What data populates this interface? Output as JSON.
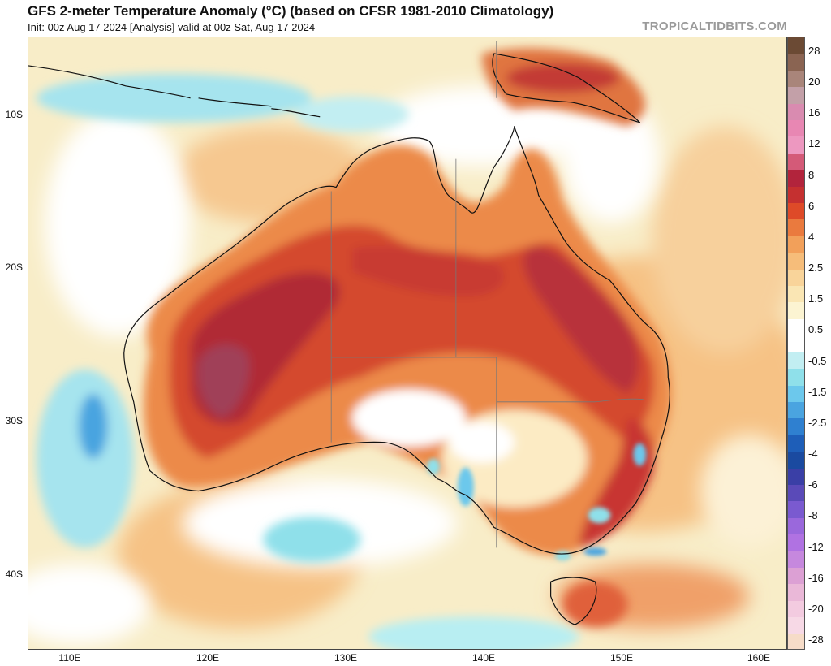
{
  "header": {
    "title": "GFS 2-meter Temperature Anomaly (°C) (based on CFSR 1981-2010 Climatology)",
    "subtitle": "Init: 00z Aug 17 2024   [Analysis]   valid at 00z Sat, Aug 17 2024",
    "credit": "TROPICALTIDBITS.COM"
  },
  "map": {
    "region": "Australia",
    "lat_labels": [
      "10S",
      "20S",
      "30S",
      "40S"
    ],
    "lon_labels": [
      "110E",
      "120E",
      "130E",
      "140E",
      "150E",
      "160E"
    ]
  },
  "colorbar": {
    "labels": [
      "28",
      "20",
      "16",
      "12",
      "8",
      "6",
      "4",
      "2.5",
      "1.5",
      "0.5",
      "-0.5",
      "-1.5",
      "-2.5",
      "-4",
      "-6",
      "-8",
      "-12",
      "-16",
      "-20",
      "-28"
    ],
    "colors": [
      "#6b4a34",
      "#8a6452",
      "#a9857a",
      "#c3a0a8",
      "#d98bb0",
      "#e887b3",
      "#ed98c0",
      "#d45a78",
      "#b2243c",
      "#c53030",
      "#de4a28",
      "#ea7a3e",
      "#f2a05a",
      "#f6bd7a",
      "#f9d49a",
      "#fae6b4",
      "#fcf4d2",
      "#ffffff",
      "#ffffff",
      "#c2eef2",
      "#8fe0ea",
      "#6cc8ec",
      "#4aa4e0",
      "#2f80d0",
      "#1e5eb8",
      "#1a4aa0",
      "#3a3fa6",
      "#5a4ab8",
      "#7a5ad0",
      "#9a68dc",
      "#b072e2",
      "#c688de",
      "#dca0d4",
      "#eab8d8",
      "#f3cbe0",
      "#f7d9e6",
      "#f6dcc8"
    ]
  }
}
